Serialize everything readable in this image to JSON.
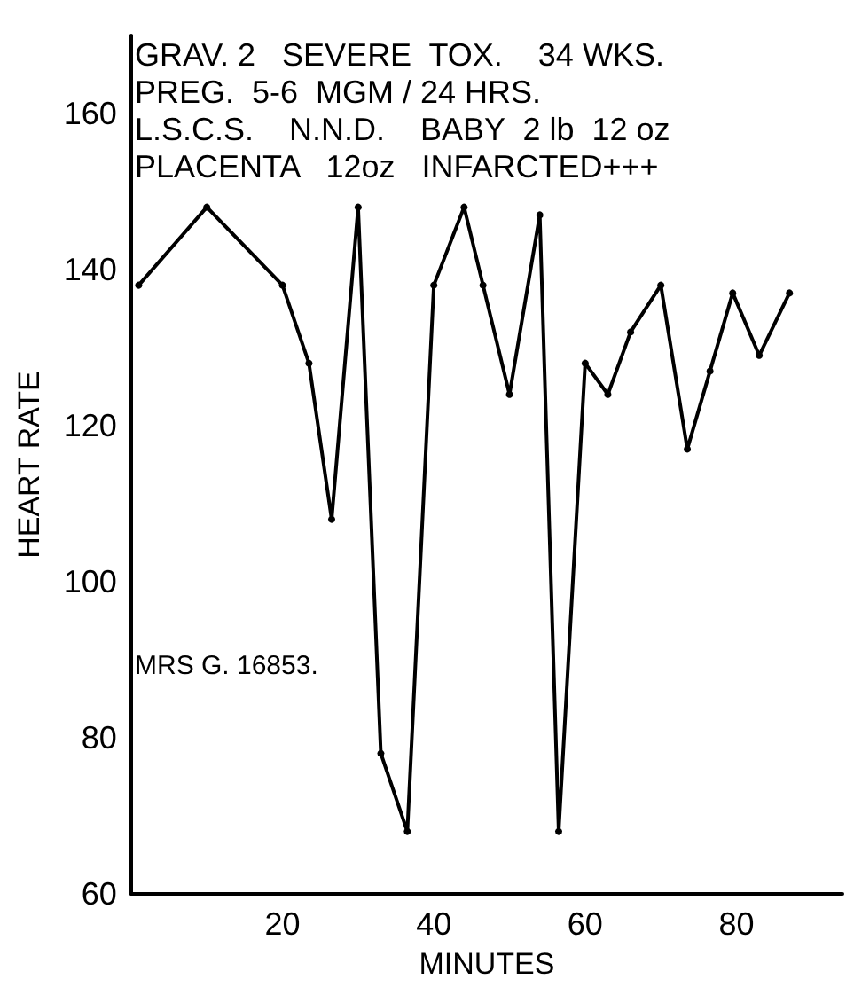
{
  "chart_data": {
    "type": "line",
    "xlabel": "MINUTES",
    "ylabel": "HEART RATE",
    "annotations": [
      "GRAV. 2   SEVERE  TOX.    34 WKS.",
      "PREG.  5-6  MGM / 24 HRS.",
      "L.S.C.S.    N.N.D.    BABY  2 lb  12 oz",
      "PLACENTA   12oz   INFARCTED+++",
      "MRS G. 16853."
    ],
    "x": [
      1,
      10,
      20,
      23.5,
      26.5,
      30,
      33,
      36.5,
      40,
      44,
      46.5,
      50,
      54,
      56.5,
      60,
      63,
      66,
      70,
      73.5,
      76.5,
      79.5,
      83,
      87
    ],
    "series": [
      {
        "color": "#000000",
        "values": [
          138,
          148,
          138,
          128,
          108,
          148,
          78,
          68,
          138,
          148,
          138,
          124,
          147,
          68,
          128,
          124,
          132,
          138,
          117,
          127,
          137,
          129,
          137
        ]
      }
    ],
    "xlim": [
      0,
      94
    ],
    "ylim": [
      60,
      170
    ],
    "xticks": [
      20,
      40,
      60,
      80
    ],
    "yticks": [
      60,
      80,
      100,
      120,
      140,
      160
    ],
    "grid": false,
    "marker": "circle",
    "line_style": "solid"
  }
}
